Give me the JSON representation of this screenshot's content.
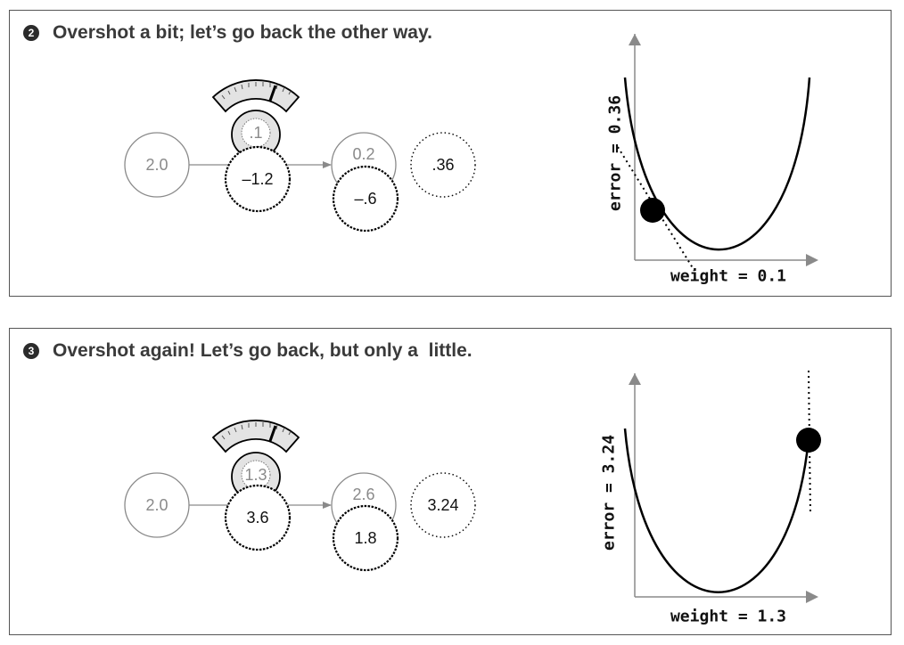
{
  "panels": [
    {
      "badge": "2",
      "title": "Overshot a bit; let’s go back the other way.",
      "network": {
        "input": "2.0",
        "weight": ".1",
        "delta": "–1.2",
        "prediction": "0.2",
        "pred_delta": "–.6",
        "error": ".36"
      },
      "plot": {
        "ylabel": "error = 0.36",
        "xlabel": "weight = 0.1"
      }
    },
    {
      "badge": "3",
      "title": "Overshot again! Let’s go back, but only a  little.",
      "network": {
        "input": "2.0",
        "weight": "1.3",
        "delta": "3.6",
        "prediction": "2.6",
        "pred_delta": "1.8",
        "error": "3.24"
      },
      "plot": {
        "ylabel": "error = 3.24",
        "xlabel": "weight = 1.3"
      }
    }
  ],
  "colors": {
    "line": "#000000",
    "grey": "#8a8a8a",
    "dial_fill": "#e3e3e3",
    "panel_border": "#555555"
  }
}
